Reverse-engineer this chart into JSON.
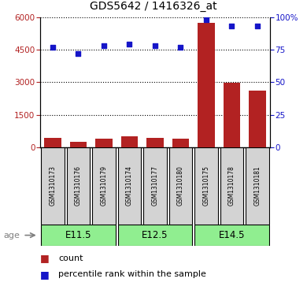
{
  "title": "GDS5642 / 1416326_at",
  "samples": [
    "GSM1310173",
    "GSM1310176",
    "GSM1310179",
    "GSM1310174",
    "GSM1310177",
    "GSM1310180",
    "GSM1310175",
    "GSM1310178",
    "GSM1310181"
  ],
  "counts": [
    430,
    270,
    400,
    490,
    430,
    380,
    5750,
    2980,
    2600
  ],
  "percentiles": [
    77,
    72,
    78,
    79,
    78,
    77,
    98,
    93,
    93
  ],
  "groups": [
    {
      "label": "E11.5",
      "start": 0,
      "end": 2
    },
    {
      "label": "E12.5",
      "start": 3,
      "end": 5
    },
    {
      "label": "E14.5",
      "start": 6,
      "end": 8
    }
  ],
  "ylim_left": [
    0,
    6000
  ],
  "ylim_right": [
    0,
    100
  ],
  "yticks_left": [
    0,
    1500,
    3000,
    4500,
    6000
  ],
  "yticks_right": [
    0,
    25,
    50,
    75,
    100
  ],
  "ytick_right_labels": [
    "0",
    "25",
    "50",
    "75",
    "100%"
  ],
  "bar_color": "#B22222",
  "dot_color": "#1515C8",
  "green_color": "#90EE90",
  "sample_bg_color": "#D3D3D3",
  "legend_count_label": "count",
  "legend_percentile_label": "percentile rank within the sample",
  "age_label": "age"
}
